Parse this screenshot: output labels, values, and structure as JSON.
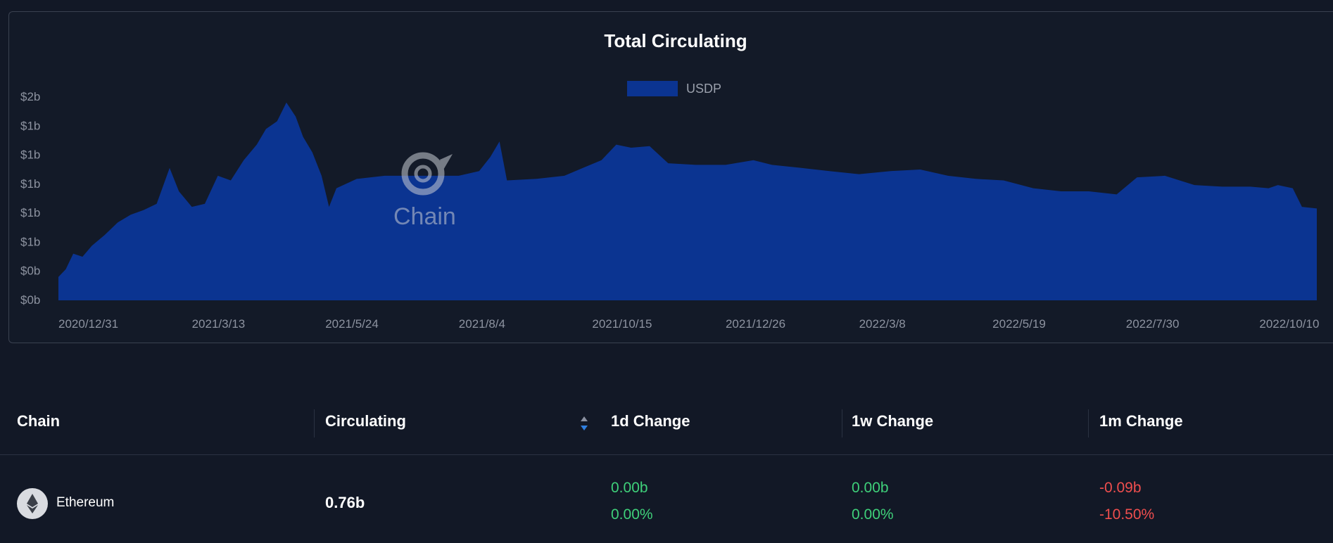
{
  "chart_data": {
    "type": "area",
    "title": "Total Circulating",
    "series": [
      {
        "name": "USDP",
        "color": "#0b3491"
      }
    ],
    "y_tick_labels": [
      "$2b",
      "$1b",
      "$1b",
      "$1b",
      "$1b",
      "$1b",
      "$0b",
      "$0b"
    ],
    "x_tick_labels": [
      "2020/12/31",
      "2021/3/13",
      "2021/5/24",
      "2021/8/4",
      "2021/10/15",
      "2021/12/26",
      "2022/3/8",
      "2022/5/19",
      "2022/7/30",
      "2022/10/10"
    ],
    "ylim": [
      0,
      1.4
    ],
    "x_start": "2020/12/31",
    "x_end": "2022/11/10",
    "points": [
      [
        "2020/12/31",
        0.15
      ],
      [
        "2021/1/4",
        0.2
      ],
      [
        "2021/1/8",
        0.3
      ],
      [
        "2021/1/13",
        0.28
      ],
      [
        "2021/1/18",
        0.35
      ],
      [
        "2021/1/25",
        0.42
      ],
      [
        "2021/2/1",
        0.5
      ],
      [
        "2021/2/8",
        0.55
      ],
      [
        "2021/2/15",
        0.58
      ],
      [
        "2021/2/22",
        0.62
      ],
      [
        "2021/3/1",
        0.85
      ],
      [
        "2021/3/6",
        0.7
      ],
      [
        "2021/3/13",
        0.6
      ],
      [
        "2021/3/20",
        0.62
      ],
      [
        "2021/3/27",
        0.8
      ],
      [
        "2021/4/3",
        0.77
      ],
      [
        "2021/4/10",
        0.9
      ],
      [
        "2021/4/17",
        1.0
      ],
      [
        "2021/4/22",
        1.1
      ],
      [
        "2021/4/28",
        1.15
      ],
      [
        "2021/5/3",
        1.27
      ],
      [
        "2021/5/8",
        1.18
      ],
      [
        "2021/5/12",
        1.05
      ],
      [
        "2021/5/17",
        0.95
      ],
      [
        "2021/5/22",
        0.8
      ],
      [
        "2021/5/26",
        0.6
      ],
      [
        "2021/5/30",
        0.72
      ],
      [
        "2021/6/10",
        0.78
      ],
      [
        "2021/6/25",
        0.8
      ],
      [
        "2021/7/10",
        0.8
      ],
      [
        "2021/7/25",
        0.8
      ],
      [
        "2021/8/4",
        0.8
      ],
      [
        "2021/8/15",
        0.83
      ],
      [
        "2021/8/21",
        0.92
      ],
      [
        "2021/8/26",
        1.02
      ],
      [
        "2021/8/30",
        0.77
      ],
      [
        "2021/9/15",
        0.78
      ],
      [
        "2021/9/30",
        0.8
      ],
      [
        "2021/10/10",
        0.85
      ],
      [
        "2021/10/20",
        0.9
      ],
      [
        "2021/10/28",
        1.0
      ],
      [
        "2021/11/5",
        0.98
      ],
      [
        "2021/11/15",
        0.99
      ],
      [
        "2021/11/25",
        0.88
      ],
      [
        "2021/12/10",
        0.87
      ],
      [
        "2021/12/26",
        0.87
      ],
      [
        "2022/1/10",
        0.9
      ],
      [
        "2022/1/20",
        0.87
      ],
      [
        "2022/2/5",
        0.85
      ],
      [
        "2022/2/20",
        0.83
      ],
      [
        "2022/3/8",
        0.81
      ],
      [
        "2022/3/25",
        0.83
      ],
      [
        "2022/4/10",
        0.84
      ],
      [
        "2022/4/25",
        0.8
      ],
      [
        "2022/5/10",
        0.78
      ],
      [
        "2022/5/25",
        0.77
      ],
      [
        "2022/6/10",
        0.72
      ],
      [
        "2022/6/25",
        0.7
      ],
      [
        "2022/7/10",
        0.7
      ],
      [
        "2022/7/25",
        0.68
      ],
      [
        "2022/8/5",
        0.79
      ],
      [
        "2022/8/20",
        0.8
      ],
      [
        "2022/9/5",
        0.74
      ],
      [
        "2022/9/20",
        0.73
      ],
      [
        "2022/10/5",
        0.73
      ],
      [
        "2022/10/15",
        0.72
      ],
      [
        "2022/10/20",
        0.74
      ],
      [
        "2022/10/28",
        0.72
      ],
      [
        "2022/11/2",
        0.6
      ],
      [
        "2022/11/10",
        0.59
      ]
    ],
    "grid": false,
    "legend_position": "top-center"
  },
  "watermark": "Chain",
  "table": {
    "headers": [
      "Chain",
      "Circulating",
      "1d Change",
      "1w Change",
      "1m Change"
    ],
    "sort_icon": "sort-icon",
    "rows": [
      {
        "chain": "Ethereum",
        "chain_icon": "ethereum-icon",
        "circulating": "0.76b",
        "change_1d_value": "0.00b",
        "change_1d_percent": "0.00%",
        "change_1w_value": "0.00b",
        "change_1w_percent": "0.00%",
        "change_1m_value": "-0.09b",
        "change_1m_percent": "-10.50%"
      }
    ]
  },
  "colors": {
    "background": "#121826",
    "area": "#0b3491",
    "positive": "#3fd07a",
    "negative": "#ef4e4e"
  }
}
